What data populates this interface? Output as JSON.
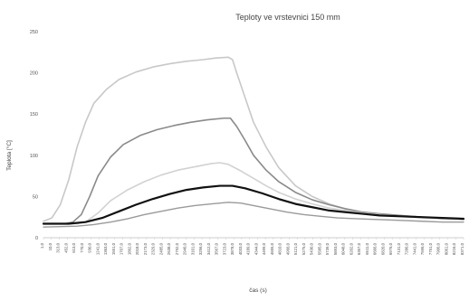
{
  "chart_data": {
    "type": "line",
    "title": "Teploty ve vrstevnici 150 mm",
    "xlabel": "čas (s)",
    "ylabel": "Teplota [°C]",
    "ylim": [
      0,
      250
    ],
    "yticks": [
      0,
      50,
      100,
      150,
      200,
      250
    ],
    "grid": false,
    "legend": "none",
    "x_tick_labels": [
      "1,0",
      "10,0",
      "313,0",
      "452,0",
      "613,0",
      "770,0",
      "930,0",
      "1241,0",
      "1363,0",
      "1551,0",
      "1707,0",
      "1862,0",
      "2018,0",
      "2173,0",
      "2329,0",
      "2485,0",
      "2638,0",
      "2792,0",
      "2946,0",
      "3101,0",
      "3256,0",
      "3412,0",
      "3567,0",
      "3723,0",
      "3878,0",
      "4033,0",
      "4189,0",
      "4344,0",
      "4499,0",
      "4655,0",
      "4810,0",
      "4966,0",
      "5121,0",
      "5275,0",
      "5430,0",
      "5585,0",
      "5739,0",
      "5893,0",
      "6048,0",
      "6202,0",
      "6357,0",
      "6511,0",
      "6666,0",
      "6820,0",
      "6976,0",
      "7131,0",
      "7286,0",
      "7441,0",
      "7596,0",
      "7751,0",
      "7906,0",
      "8061,0",
      "8216,0",
      "8371,0"
    ],
    "series": [
      {
        "color": "#c8c8c8",
        "width": 1.6,
        "points": [
          [
            0,
            20
          ],
          [
            0.02,
            24
          ],
          [
            0.04,
            40
          ],
          [
            0.06,
            70
          ],
          [
            0.08,
            110
          ],
          [
            0.1,
            140
          ],
          [
            0.12,
            163
          ],
          [
            0.15,
            180
          ],
          [
            0.18,
            192
          ],
          [
            0.22,
            201
          ],
          [
            0.26,
            207
          ],
          [
            0.3,
            211
          ],
          [
            0.34,
            214
          ],
          [
            0.38,
            216
          ],
          [
            0.41,
            218
          ],
          [
            0.44,
            219
          ],
          [
            0.45,
            216
          ],
          [
            0.46,
            200
          ],
          [
            0.48,
            170
          ],
          [
            0.5,
            140
          ],
          [
            0.53,
            110
          ],
          [
            0.56,
            85
          ],
          [
            0.6,
            63
          ],
          [
            0.64,
            50
          ],
          [
            0.68,
            41
          ],
          [
            0.72,
            35
          ],
          [
            0.76,
            31
          ],
          [
            0.8,
            29
          ],
          [
            0.85,
            27
          ],
          [
            0.9,
            25
          ],
          [
            0.95,
            23
          ],
          [
            1.0,
            22
          ]
        ]
      },
      {
        "color": "#8a8a8a",
        "width": 1.6,
        "points": [
          [
            0,
            17
          ],
          [
            0.05,
            17
          ],
          [
            0.07,
            19
          ],
          [
            0.09,
            28
          ],
          [
            0.11,
            50
          ],
          [
            0.13,
            75
          ],
          [
            0.16,
            98
          ],
          [
            0.19,
            113
          ],
          [
            0.23,
            124
          ],
          [
            0.27,
            131
          ],
          [
            0.31,
            136
          ],
          [
            0.35,
            140
          ],
          [
            0.39,
            143
          ],
          [
            0.43,
            145
          ],
          [
            0.445,
            145
          ],
          [
            0.46,
            135
          ],
          [
            0.48,
            118
          ],
          [
            0.5,
            100
          ],
          [
            0.53,
            82
          ],
          [
            0.56,
            68
          ],
          [
            0.6,
            55
          ],
          [
            0.64,
            46
          ],
          [
            0.68,
            40
          ],
          [
            0.72,
            35
          ],
          [
            0.76,
            31
          ],
          [
            0.8,
            29
          ],
          [
            0.85,
            27
          ],
          [
            0.9,
            25
          ],
          [
            0.95,
            23
          ],
          [
            1.0,
            22
          ]
        ]
      },
      {
        "color": "#d2d2d2",
        "width": 1.6,
        "points": [
          [
            0,
            17
          ],
          [
            0.08,
            17
          ],
          [
            0.1,
            19
          ],
          [
            0.13,
            30
          ],
          [
            0.16,
            45
          ],
          [
            0.2,
            58
          ],
          [
            0.24,
            68
          ],
          [
            0.28,
            76
          ],
          [
            0.32,
            82
          ],
          [
            0.36,
            86
          ],
          [
            0.4,
            90
          ],
          [
            0.42,
            91
          ],
          [
            0.44,
            89
          ],
          [
            0.47,
            81
          ],
          [
            0.5,
            72
          ],
          [
            0.53,
            63
          ],
          [
            0.56,
            55
          ],
          [
            0.6,
            47
          ],
          [
            0.64,
            41
          ],
          [
            0.68,
            36
          ],
          [
            0.72,
            33
          ],
          [
            0.76,
            30
          ],
          [
            0.8,
            28
          ],
          [
            0.85,
            26
          ],
          [
            0.9,
            24
          ],
          [
            0.95,
            23
          ],
          [
            1.0,
            22
          ]
        ]
      },
      {
        "color": "#111111",
        "width": 2.2,
        "points": [
          [
            0,
            17
          ],
          [
            0.06,
            17
          ],
          [
            0.1,
            19
          ],
          [
            0.14,
            24
          ],
          [
            0.18,
            32
          ],
          [
            0.22,
            40
          ],
          [
            0.26,
            47
          ],
          [
            0.3,
            53
          ],
          [
            0.34,
            58
          ],
          [
            0.38,
            61
          ],
          [
            0.42,
            63
          ],
          [
            0.45,
            63
          ],
          [
            0.48,
            60
          ],
          [
            0.52,
            54
          ],
          [
            0.56,
            47
          ],
          [
            0.6,
            41
          ],
          [
            0.64,
            37
          ],
          [
            0.68,
            33
          ],
          [
            0.72,
            31
          ],
          [
            0.76,
            29
          ],
          [
            0.8,
            27
          ],
          [
            0.85,
            26
          ],
          [
            0.9,
            25
          ],
          [
            0.95,
            24
          ],
          [
            1.0,
            23
          ]
        ]
      },
      {
        "color": "#9a9a9a",
        "width": 1.4,
        "points": [
          [
            0,
            13
          ],
          [
            0.08,
            14
          ],
          [
            0.12,
            16
          ],
          [
            0.16,
            19
          ],
          [
            0.2,
            23
          ],
          [
            0.24,
            28
          ],
          [
            0.28,
            32
          ],
          [
            0.32,
            36
          ],
          [
            0.36,
            39
          ],
          [
            0.4,
            41
          ],
          [
            0.44,
            43
          ],
          [
            0.47,
            42
          ],
          [
            0.5,
            39
          ],
          [
            0.54,
            35
          ],
          [
            0.58,
            31
          ],
          [
            0.62,
            28
          ],
          [
            0.66,
            26
          ],
          [
            0.7,
            24
          ],
          [
            0.75,
            23
          ],
          [
            0.8,
            22
          ],
          [
            0.85,
            21
          ],
          [
            0.9,
            20
          ],
          [
            0.95,
            19
          ],
          [
            1.0,
            19
          ]
        ]
      }
    ]
  }
}
